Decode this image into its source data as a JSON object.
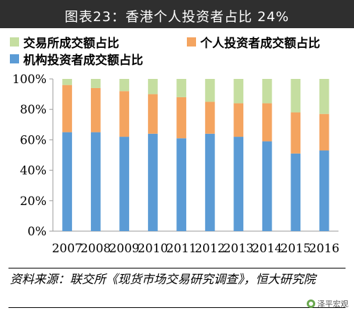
{
  "title": "图表23：香港个人投资者占比 24%",
  "chart_data": {
    "type": "bar",
    "stacked": true,
    "categories": [
      "2007",
      "2008",
      "2009",
      "2010",
      "2011",
      "2012",
      "2013",
      "2014",
      "2015",
      "2016"
    ],
    "series": [
      {
        "name": "机构投资者成交额占比",
        "color": "#5b9bd5",
        "values": [
          65,
          65,
          62,
          64,
          61,
          64,
          62,
          59,
          51,
          53
        ]
      },
      {
        "name": "个人投资者成交额占比",
        "color": "#f4a460",
        "values": [
          31,
          29,
          30,
          26,
          27,
          21,
          22,
          25,
          27,
          24
        ]
      },
      {
        "name": "交易所成交额占比",
        "color": "#c5dea0",
        "values": [
          4,
          6,
          8,
          10,
          12,
          15,
          16,
          16,
          22,
          23
        ]
      }
    ],
    "yticks": [
      "0%",
      "20%",
      "40%",
      "60%",
      "80%",
      "100%"
    ],
    "ylim": [
      0,
      100
    ],
    "legend_position": "top",
    "grid": false
  },
  "source": "资料来源：联交所《现货市场交易研究调查》，恒大研究院",
  "watermark": "泽平宏观"
}
